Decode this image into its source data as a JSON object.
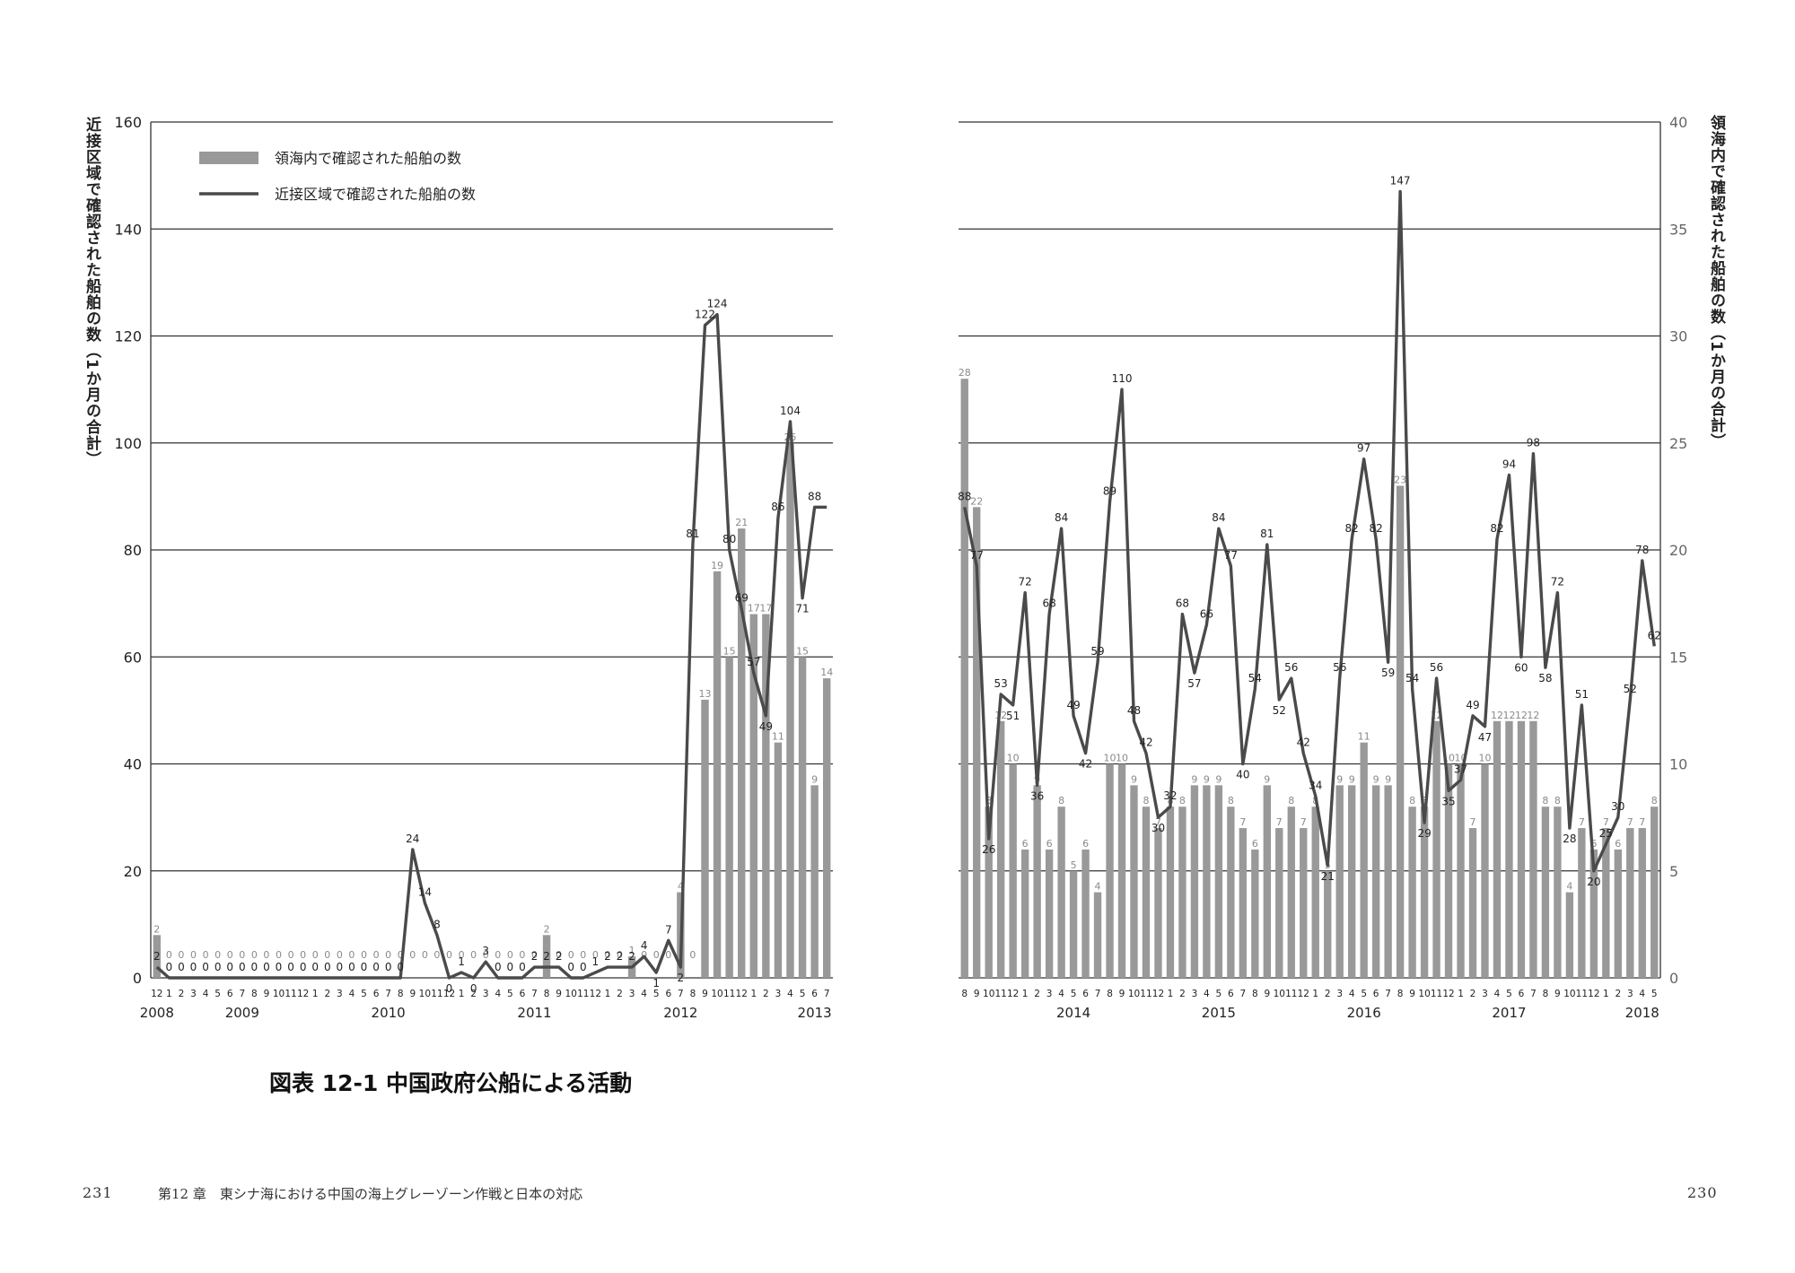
{
  "page": {
    "caption": "図表 12-1 中国政府公船による活動",
    "page_left": "231",
    "page_right": "230",
    "running_head": "第12 章　東シナ海における中国の海上グレーゾーン作戦と日本の対応"
  },
  "colors": {
    "bar": "#999999",
    "line": "#4a4a4a",
    "grid": "#333333",
    "text": "#222222",
    "bar_label": "#8a8a8a"
  },
  "chart_data": [
    {
      "type": "bar+line",
      "ylabel_left": "近接区域で確認された船舶の数（1か月の合計）",
      "ylabel_right": "",
      "y_left_range": [
        0,
        160
      ],
      "y_left_ticks": [
        0,
        20,
        40,
        60,
        80,
        100,
        120,
        140,
        160
      ],
      "legend": [
        "領海内で確認された船舶の数",
        "近接区域で確認された船舶の数"
      ],
      "legend_position": "top-left",
      "grid": true,
      "months": [
        "12",
        "1",
        "2",
        "3",
        "4",
        "5",
        "6",
        "7",
        "8",
        "9",
        "10",
        "11",
        "12",
        "1",
        "2",
        "3",
        "4",
        "5",
        "6",
        "7",
        "8",
        "9",
        "10",
        "11",
        "12",
        "1",
        "2",
        "3",
        "4",
        "5",
        "6",
        "7",
        "8",
        "9",
        "10",
        "11",
        "12",
        "1",
        "2",
        "3",
        "4",
        "5",
        "6",
        "7",
        "8",
        "9",
        "10",
        "11",
        "12",
        "1",
        "2",
        "3",
        "4",
        "5",
        "6",
        "7"
      ],
      "years": [
        {
          "label": "2008",
          "index": 0
        },
        {
          "label": "2009",
          "index": 7
        },
        {
          "label": "2010",
          "index": 19
        },
        {
          "label": "2011",
          "index": 31
        },
        {
          "label": "2012",
          "index": 43
        },
        {
          "label": "2013",
          "index": 54
        }
      ],
      "series": [
        {
          "name": "領海内で確認された船舶の数",
          "kind": "bar",
          "axis": "right",
          "values": [
            2,
            0,
            0,
            0,
            0,
            0,
            0,
            0,
            0,
            0,
            0,
            0,
            0,
            0,
            0,
            0,
            0,
            0,
            0,
            0,
            0,
            0,
            0,
            0,
            0,
            0,
            0,
            0,
            0,
            0,
            0,
            0,
            2,
            0,
            0,
            0,
            0,
            0,
            0,
            1,
            0,
            0,
            0,
            4,
            0,
            13,
            19,
            15,
            21,
            17,
            17,
            11,
            25,
            15,
            9,
            14
          ]
        },
        {
          "name": "近接区域で確認された船舶の数",
          "kind": "line",
          "axis": "left",
          "values": [
            2,
            0,
            0,
            0,
            0,
            0,
            0,
            0,
            0,
            0,
            0,
            0,
            0,
            0,
            0,
            0,
            0,
            0,
            0,
            0,
            0,
            24,
            14,
            8,
            0,
            1,
            0,
            3,
            0,
            0,
            0,
            2,
            2,
            2,
            0,
            0,
            1,
            2,
            2,
            2,
            4,
            1,
            7,
            2,
            81,
            122,
            124,
            80,
            69,
            57,
            49,
            86,
            104,
            71,
            88,
            88
          ]
        }
      ],
      "value_labels": {
        "bar": [
          "2",
          "0",
          "0",
          "0",
          "0",
          "0",
          "0",
          "0",
          "0",
          "0",
          "0",
          "0",
          "0",
          "0",
          "0",
          "0",
          "0",
          "0",
          "0",
          "0",
          "0",
          "0",
          "0",
          "0",
          "0",
          "0",
          "0",
          "0",
          "0",
          "0",
          "0",
          "0",
          "2",
          "0",
          "0",
          "0",
          "0",
          "0",
          "0",
          "1",
          "0",
          "0",
          "0",
          "4",
          "0",
          "13",
          "19",
          "15",
          "21",
          "17",
          "17",
          "11",
          "25",
          "15",
          "9",
          "14"
        ],
        "line": [
          "2",
          "0",
          "0",
          "0",
          "0",
          "0",
          "0",
          "0",
          "0",
          "0",
          "0",
          "0",
          "0",
          "0",
          "0",
          "0",
          "0",
          "0",
          "0",
          "0",
          "0",
          "24",
          "14",
          "8",
          "0",
          "1",
          "0",
          "3",
          "0",
          "0",
          "0",
          "2",
          "2",
          "2",
          "0",
          "0",
          "1",
          "2",
          "2",
          "2",
          "4",
          "1",
          "7",
          "2",
          "81",
          "122",
          "124",
          "80",
          "69",
          "57",
          "49",
          "86",
          "104",
          "71",
          "88",
          ""
        ]
      }
    },
    {
      "type": "bar+line",
      "ylabel_left": "",
      "ylabel_right": "領海内で確認された船舶の数（1か月の合計）",
      "y_right_range": [
        0,
        40
      ],
      "y_right_ticks": [
        0,
        5,
        10,
        15,
        20,
        25,
        30,
        35,
        40
      ],
      "grid": true,
      "months": [
        "8",
        "9",
        "10",
        "11",
        "12",
        "1",
        "2",
        "3",
        "4",
        "5",
        "6",
        "7",
        "8",
        "9",
        "10",
        "11",
        "12",
        "1",
        "2",
        "3",
        "4",
        "5",
        "6",
        "7",
        "8",
        "9",
        "10",
        "11",
        "12",
        "1",
        "2",
        "3",
        "4",
        "5",
        "6",
        "7",
        "8",
        "9",
        "10",
        "11",
        "12",
        "1",
        "2",
        "3",
        "4",
        "5",
        "6",
        "7",
        "8",
        "9",
        "10",
        "11",
        "12",
        "1",
        "2",
        "3",
        "4",
        "5"
      ],
      "years": [
        {
          "label": "2014",
          "index": 9
        },
        {
          "label": "2015",
          "index": 21
        },
        {
          "label": "2016",
          "index": 33
        },
        {
          "label": "2017",
          "index": 45
        },
        {
          "label": "2018",
          "index": 56
        }
      ],
      "series": [
        {
          "name": "領海内で確認された船舶の数",
          "kind": "bar",
          "axis": "right",
          "values": [
            28,
            22,
            8,
            12,
            10,
            6,
            9,
            6,
            8,
            5,
            6,
            4,
            10,
            10,
            9,
            8,
            7,
            8,
            8,
            9,
            9,
            9,
            8,
            7,
            6,
            9,
            7,
            8,
            7,
            8,
            5,
            9,
            9,
            11,
            9,
            9,
            23,
            8,
            8,
            12,
            10,
            10,
            7,
            10,
            12,
            12,
            12,
            12,
            8,
            8,
            4,
            7,
            6,
            7,
            6,
            7,
            7,
            8
          ]
        },
        {
          "name": "近接区域で確認された船舶の数",
          "kind": "line",
          "axis": "left",
          "values": [
            88,
            77,
            26,
            53,
            51,
            72,
            36,
            68,
            84,
            49,
            42,
            59,
            89,
            110,
            48,
            42,
            30,
            32,
            68,
            57,
            66,
            84,
            77,
            40,
            54,
            81,
            52,
            56,
            42,
            34,
            21,
            56,
            82,
            97,
            82,
            59,
            147,
            54,
            29,
            56,
            35,
            37,
            49,
            47,
            82,
            94,
            60,
            98,
            58,
            72,
            28,
            51,
            20,
            25,
            30,
            52,
            78,
            62
          ]
        }
      ],
      "value_labels": {
        "bar": [
          "28",
          "22",
          "8",
          "12",
          "10",
          "6",
          "9",
          "6",
          "8",
          "5",
          "6",
          "4",
          "10",
          "10",
          "9",
          "8",
          "7",
          "8",
          "8",
          "9",
          "9",
          "9",
          "8",
          "7",
          "6",
          "9",
          "7",
          "8",
          "7",
          "8",
          "5",
          "9",
          "9",
          "11",
          "9",
          "9",
          "23",
          "8",
          "8",
          "12",
          "10",
          "10",
          "7",
          "10",
          "12",
          "12",
          "12",
          "12",
          "8",
          "8",
          "4",
          "7",
          "6",
          "7",
          "6",
          "7",
          "7",
          "8"
        ],
        "line": [
          "88",
          "77",
          "26",
          "53",
          "51",
          "72",
          "36",
          "68",
          "84",
          "49",
          "42",
          "59",
          "89",
          "110",
          "48",
          "42",
          "30",
          "32",
          "68",
          "57",
          "66",
          "84",
          "77",
          "40",
          "54",
          "81",
          "52",
          "56",
          "42",
          "34",
          "21",
          "56",
          "82",
          "97",
          "82",
          "59",
          "147",
          "54",
          "29",
          "56",
          "35",
          "37",
          "49",
          "47",
          "82",
          "94",
          "60",
          "98",
          "58",
          "72",
          "28",
          "51",
          "20",
          "25",
          "30",
          "52",
          "78",
          "62"
        ]
      }
    }
  ]
}
